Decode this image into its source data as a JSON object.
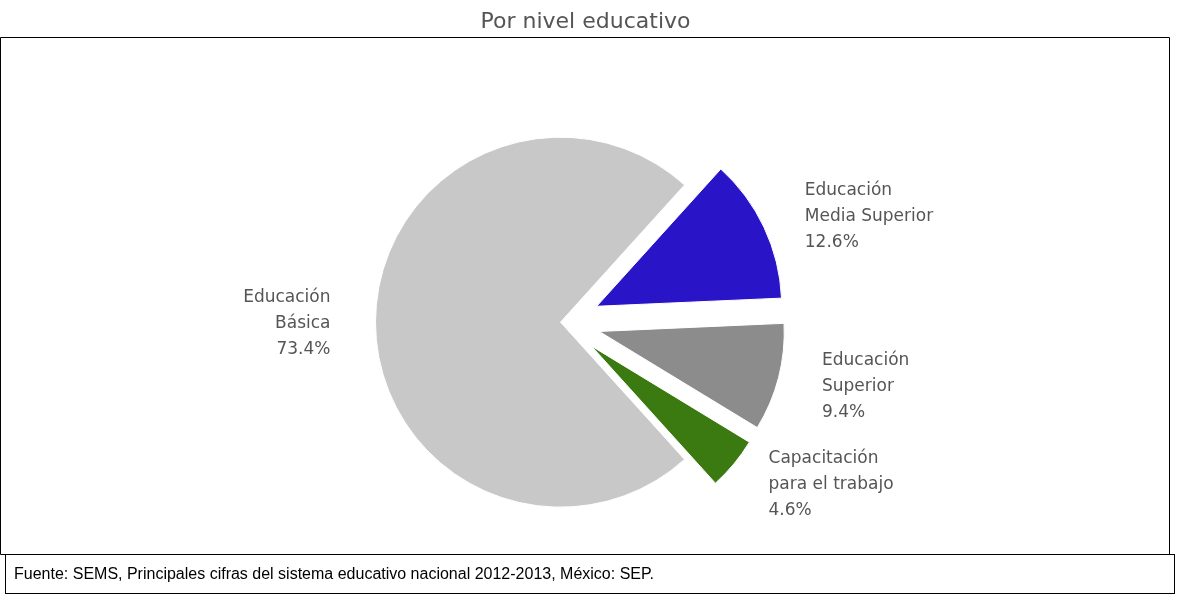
{
  "chart_data": {
    "type": "pie",
    "title": "Por nivel educativo",
    "categories": [
      "Educación Básica",
      "Educación Media Superior",
      "Educación Superior",
      "Capacitación para el trabajo"
    ],
    "values": [
      73.4,
      12.6,
      9.4,
      4.6
    ],
    "value_labels": [
      "73.4%",
      "12.6%",
      "9.4%",
      "4.6%"
    ],
    "colors": [
      "#c8c8c8",
      "#2a14c8",
      "#8c8c8c",
      "#3a7a10"
    ],
    "annotations": [
      "Fuente: SEMS, Principales cifras del sistema educativo nacional 2012-2013, México: SEP."
    ]
  }
}
